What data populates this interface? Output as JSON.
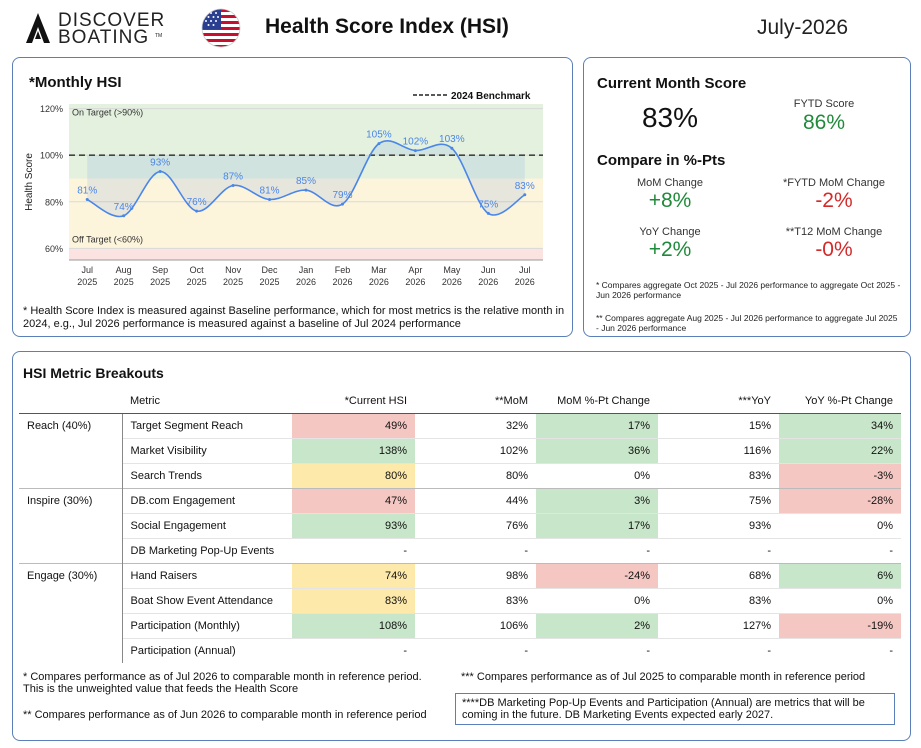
{
  "header": {
    "brand_top": "DISCOVER",
    "brand_bottom": "BOATING",
    "brand_tm": "TM",
    "title": "Health Score Index (HSI)",
    "month": "July-2026"
  },
  "hsi_panel": {
    "title": "*Monthly HSI",
    "benchmark_label": "2024 Benchmark",
    "on_target_label": "On Target (>90%)",
    "off_target_label": "Off Target (<60%)",
    "footnote": "* Health Score Index is measured against Baseline performance, which for most metrics is the relative month in 2024, e.g., Jul 2026 performance is measured against a baseline of Jul 2024 performance"
  },
  "chart_data": {
    "type": "line",
    "title": "*Monthly HSI",
    "ylabel": "Health Score",
    "xlabel": "",
    "ylim": [
      55,
      122
    ],
    "yticks": [
      60,
      80,
      100,
      120
    ],
    "ytick_labels": [
      "60%",
      "80%",
      "100%",
      "120%"
    ],
    "categories": [
      [
        "Jul",
        "2025"
      ],
      [
        "Aug",
        "2025"
      ],
      [
        "Sep",
        "2025"
      ],
      [
        "Oct",
        "2025"
      ],
      [
        "Nov",
        "2025"
      ],
      [
        "Dec",
        "2025"
      ],
      [
        "Jan",
        "2026"
      ],
      [
        "Feb",
        "2026"
      ],
      [
        "Mar",
        "2026"
      ],
      [
        "Apr",
        "2026"
      ],
      [
        "May",
        "2026"
      ],
      [
        "Jun",
        "2026"
      ],
      [
        "Jul",
        "2026"
      ]
    ],
    "values": [
      81,
      74,
      93,
      76,
      87,
      81,
      85,
      79,
      105,
      102,
      103,
      75,
      83
    ],
    "data_labels": [
      "81%",
      "74%",
      "93%",
      "76%",
      "87%",
      "81%",
      "85%",
      "79%",
      "105%",
      "102%",
      "103%",
      "75%",
      "83%"
    ],
    "benchmark": 100,
    "bands": [
      {
        "from": 90,
        "to": 122,
        "color": "#e3f1de"
      },
      {
        "from": 60,
        "to": 90,
        "color": "#fdf4dc"
      },
      {
        "from": 55,
        "to": 60,
        "color": "#fbe3e1"
      }
    ],
    "line_color": "#4a86e8",
    "grid": true,
    "legend": "top-right"
  },
  "score_panel": {
    "title": "Current Month Score",
    "current_score": "83%",
    "fytd_label": "FYTD Score",
    "fytd_value": "86%",
    "compare_title": "Compare in %-Pts",
    "mom_label": "MoM Change",
    "mom_value": "+8%",
    "fytd_mom_label": "*FYTD MoM Change",
    "fytd_mom_value": "-2%",
    "yoy_label": "YoY Change",
    "yoy_value": "+2%",
    "t12_label": "**T12 MoM Change",
    "t12_value": "-0%",
    "note1": "* Compares aggregate Oct 2025 - Jul 2026 performance to aggregate Oct 2025 - Jun 2026 performance",
    "note2": "** Compares aggregate Aug 2025 - Jul 2026 performance to aggregate Jul 2025 - Jun 2026 performance",
    "colors": {
      "positive": "#1f8a3a",
      "negative": "#d42a2a"
    }
  },
  "metrics_panel": {
    "title": "HSI Metric Breakouts",
    "columns": [
      "Metric",
      "*Current HSI",
      "**MoM",
      "MoM %-Pt Change",
      "***YoY",
      "YoY %-Pt Change"
    ],
    "groups": [
      {
        "name": "Reach (40%)",
        "rows": [
          {
            "metric": "Target Segment Reach",
            "current": "49%",
            "current_bg": "red",
            "mom": "32%",
            "mom_chg": "17%",
            "mom_chg_bg": "green",
            "yoy": "15%",
            "yoy_chg": "34%",
            "yoy_chg_bg": "green"
          },
          {
            "metric": "Market Visibility",
            "current": "138%",
            "current_bg": "green",
            "mom": "102%",
            "mom_chg": "36%",
            "mom_chg_bg": "green",
            "yoy": "116%",
            "yoy_chg": "22%",
            "yoy_chg_bg": "green"
          },
          {
            "metric": "Search Trends",
            "current": "80%",
            "current_bg": "yellow",
            "mom": "80%",
            "mom_chg": "0%",
            "mom_chg_bg": "",
            "yoy": "83%",
            "yoy_chg": "-3%",
            "yoy_chg_bg": "red"
          }
        ]
      },
      {
        "name": "Inspire (30%)",
        "rows": [
          {
            "metric": "DB.com Engagement",
            "current": "47%",
            "current_bg": "red",
            "mom": "44%",
            "mom_chg": "3%",
            "mom_chg_bg": "green",
            "yoy": "75%",
            "yoy_chg": "-28%",
            "yoy_chg_bg": "red"
          },
          {
            "metric": "Social Engagement",
            "current": "93%",
            "current_bg": "green",
            "mom": "76%",
            "mom_chg": "17%",
            "mom_chg_bg": "green",
            "yoy": "93%",
            "yoy_chg": "0%",
            "yoy_chg_bg": ""
          },
          {
            "metric": "DB Marketing Pop-Up Events",
            "current": "-",
            "current_bg": "",
            "mom": "-",
            "mom_chg": "-",
            "mom_chg_bg": "",
            "yoy": "-",
            "yoy_chg": "-",
            "yoy_chg_bg": ""
          }
        ]
      },
      {
        "name": "Engage (30%)",
        "rows": [
          {
            "metric": "Hand Raisers",
            "current": "74%",
            "current_bg": "yellow",
            "mom": "98%",
            "mom_chg": "-24%",
            "mom_chg_bg": "red",
            "yoy": "68%",
            "yoy_chg": "6%",
            "yoy_chg_bg": "green"
          },
          {
            "metric": "Boat Show Event Attendance",
            "current": "83%",
            "current_bg": "yellow",
            "mom": "83%",
            "mom_chg": "0%",
            "mom_chg_bg": "",
            "yoy": "83%",
            "yoy_chg": "0%",
            "yoy_chg_bg": ""
          },
          {
            "metric": "Participation (Monthly)",
            "current": "108%",
            "current_bg": "green",
            "mom": "106%",
            "mom_chg": "2%",
            "mom_chg_bg": "green",
            "yoy": "127%",
            "yoy_chg": "-19%",
            "yoy_chg_bg": "red"
          },
          {
            "metric": "Participation (Annual)",
            "current": "-",
            "current_bg": "",
            "mom": "-",
            "mom_chg": "-",
            "mom_chg_bg": "",
            "yoy": "-",
            "yoy_chg": "-",
            "yoy_chg_bg": ""
          }
        ]
      }
    ],
    "footnote1": "* Compares performance as of Jul 2026 to comparable month in reference period. This is the unweighted value that feeds the Health Score",
    "footnote2": "** Compares performance as of Jun 2026 to comparable month in reference period",
    "footnote3": "*** Compares performance as of Jul 2025 to comparable month in reference period",
    "future_note": "****DB Marketing Pop-Up Events and Participation (Annual) are metrics that will be coming in the future. DB Marketing Events expected early 2027."
  }
}
